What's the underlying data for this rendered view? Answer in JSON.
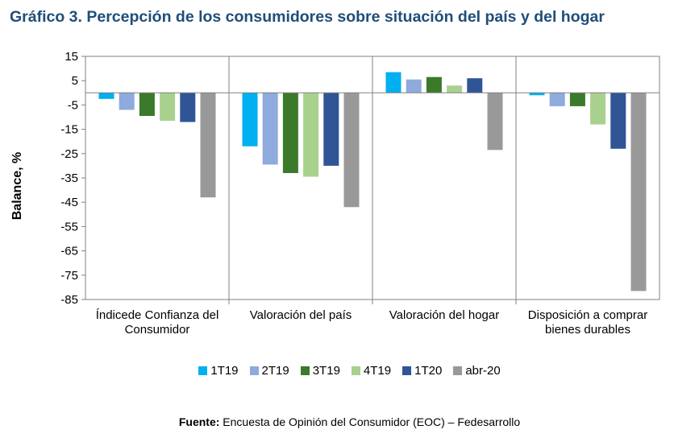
{
  "title": "Gráfico 3. Percepción de los consumidores sobre situación del país y del hogar",
  "source": {
    "label": "Fuente:",
    "text": " Encuesta de Opinión del Consumidor (EOC) – Fedesarrollo"
  },
  "chart_data": {
    "type": "bar",
    "ylabel": "Balance, %",
    "ylim": [
      -85,
      15
    ],
    "yticks": [
      15,
      5,
      -5,
      -15,
      -25,
      -35,
      -45,
      -55,
      -65,
      -75,
      -85
    ],
    "categories": [
      [
        "Índicede Confianza del",
        "Consumidor"
      ],
      [
        "Valoración del país"
      ],
      [
        "Valoración del hogar"
      ],
      [
        "Disposición a comprar",
        "bienes durables"
      ]
    ],
    "series": [
      {
        "name": "1T19",
        "color": "#00b0f0",
        "values": [
          -2.5,
          -22,
          8.5,
          -1
        ]
      },
      {
        "name": "2T19",
        "color": "#8faadc",
        "values": [
          -7,
          -29.5,
          5.5,
          -5.5
        ]
      },
      {
        "name": "3T19",
        "color": "#3a7a2a",
        "values": [
          -9.5,
          -33,
          6.5,
          -5.5
        ]
      },
      {
        "name": "4T19",
        "color": "#a9d18e",
        "values": [
          -11.5,
          -34.5,
          3,
          -13
        ]
      },
      {
        "name": "1T20",
        "color": "#2f5597",
        "values": [
          -12,
          -30,
          6,
          -23
        ]
      },
      {
        "name": "abr-20",
        "color": "#999999",
        "values": [
          -43,
          -47,
          -23.5,
          -81.5
        ]
      }
    ],
    "legend": "bottom",
    "grid": false
  }
}
